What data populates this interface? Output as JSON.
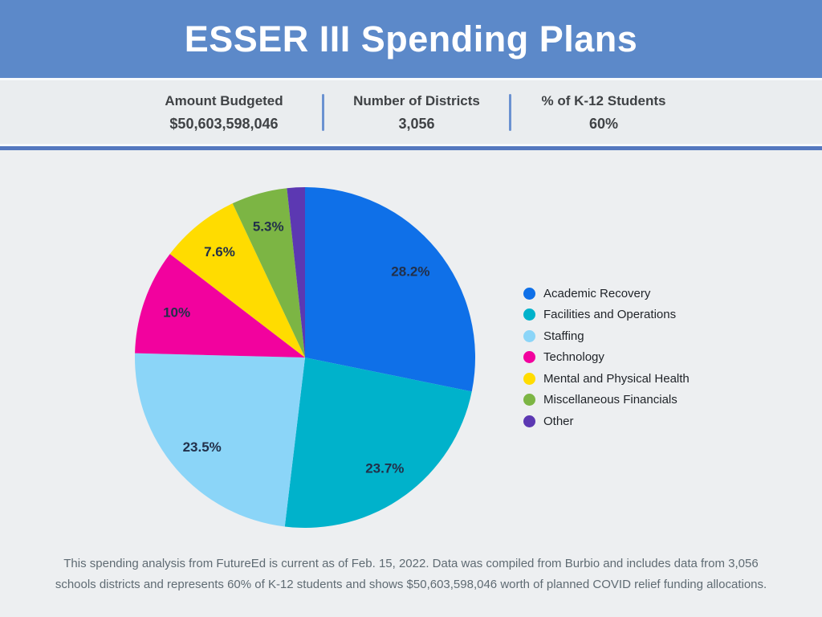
{
  "header": {
    "title": "ESSER III Spending Plans"
  },
  "stats": {
    "items": [
      {
        "label": "Amount Budgeted",
        "value": "$50,603,598,046"
      },
      {
        "label": "Number of Districts",
        "value": "3,056"
      },
      {
        "label": "% of K-12 Students",
        "value": "60%"
      }
    ]
  },
  "chart_data": {
    "type": "pie",
    "title": "ESSER III Spending Plans",
    "categories": [
      "Academic Recovery",
      "Facilities and Operations",
      "Staffing",
      "Technology",
      "Mental and Physical Health",
      "Miscellaneous Financials",
      "Other"
    ],
    "values": [
      28.2,
      23.7,
      23.5,
      10,
      7.6,
      5.3,
      1.7
    ],
    "labels": [
      "28.2%",
      "23.7%",
      "23.5%",
      "10%",
      "7.6%",
      "5.3%",
      ""
    ],
    "colors": [
      "#0F70E8",
      "#00B2CB",
      "#8BD5F8",
      "#F2029E",
      "#FFDC00",
      "#7CB544",
      "#5C38B2"
    ],
    "unit": "percent",
    "start_angle_deg": 0,
    "direction": "clockwise",
    "legend_position": "right"
  },
  "footer": {
    "lines": [
      "This spending analysis from FutureEd is current as of Feb. 15, 2022. Data was compiled from Burbio and includes data from 3,056",
      "schools districts and represents 60% of K-12 students and shows $50,603,598,046 worth of planned COVID relief funding allocations."
    ]
  },
  "theme": {
    "header_bg": "#5C89C9",
    "stats_bg": "#EAEDEF",
    "main_bg": "#EDEFF1",
    "divider_line": "#5478BF",
    "stat_separator": "#6B92D1",
    "stat_text": "#3F4245",
    "percent_label_text": "#22304A",
    "legend_text": "#1F2328",
    "footer_text": "#5F6B73",
    "title_text": "#FFFFFF"
  }
}
